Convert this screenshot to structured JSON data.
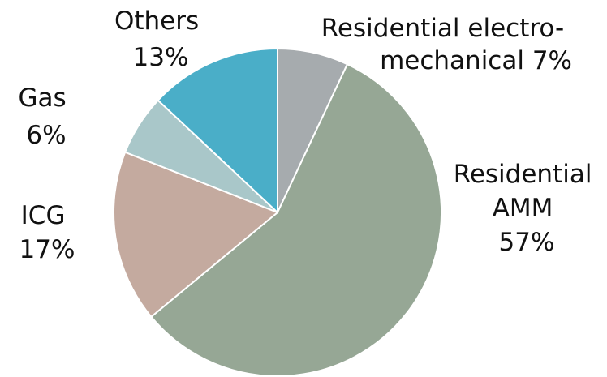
{
  "chart_data": {
    "type": "pie",
    "start_angle_deg": 0,
    "direction": "clockwise",
    "slices": [
      {
        "label_lines": [
          "Residential electro-",
          "mechanical 7%"
        ],
        "category": "Residential electro-mechanical",
        "value": 7,
        "color": "#a6abae"
      },
      {
        "label_lines": [
          "Residential",
          "AMM",
          "57%"
        ],
        "category": "Residential AMM",
        "value": 57,
        "color": "#96a795"
      },
      {
        "label_lines": [
          "ICG",
          "17%"
        ],
        "category": "ICG",
        "value": 17,
        "color": "#c4aa9f"
      },
      {
        "label_lines": [
          "Gas",
          "6%"
        ],
        "category": "Gas",
        "value": 6,
        "color": "#a9c7c9"
      },
      {
        "label_lines": [
          "Others",
          "13%"
        ],
        "category": "Others",
        "value": 13,
        "color": "#4aaec8"
      }
    ]
  }
}
